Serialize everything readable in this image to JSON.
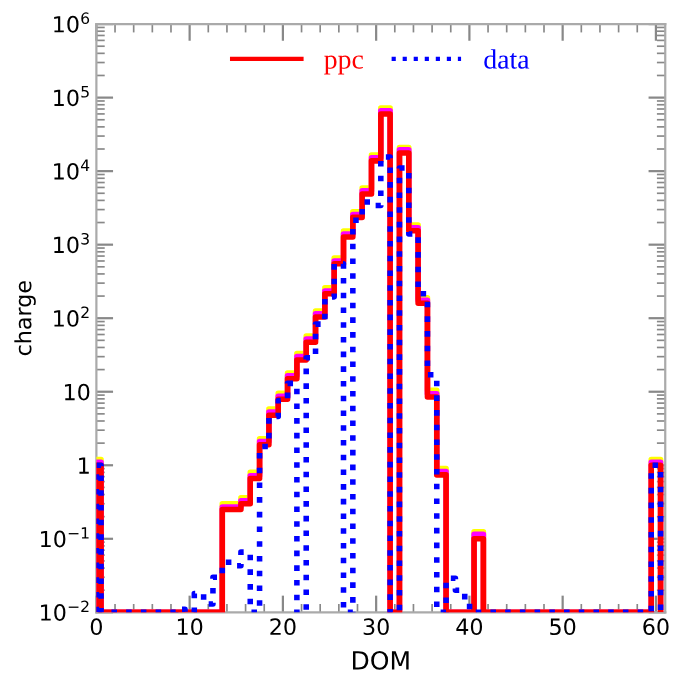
{
  "chart_data": {
    "type": "histogram",
    "xlabel": "DOM",
    "ylabel": "charge",
    "bins": [
      0,
      0.5,
      1.5,
      2.5,
      3.5,
      4.5,
      5.5,
      6.5,
      7.5,
      8.5,
      9.5,
      10.5,
      11.5,
      12.5,
      13.5,
      14.5,
      15.5,
      16.5,
      17.5,
      18.5,
      19.5,
      20.5,
      21.5,
      22.5,
      23.5,
      24.5,
      25.5,
      26.5,
      27.5,
      28.5,
      29.5,
      30.5,
      31.5,
      32.5,
      33.5,
      34.5,
      35.5,
      36.5,
      37.5,
      38.5,
      39.5,
      40.5,
      41.5,
      42.5,
      43.5,
      44.5,
      45.5,
      46.5,
      47.5,
      48.5,
      49.5,
      50.5,
      51.5,
      52.5,
      53.5,
      54.5,
      55.5,
      56.5,
      57.5,
      58.5,
      59.5,
      60.5
    ],
    "series": [
      {
        "color": "#ffff00",
        "line_style": "solid",
        "values": [
          1.2,
          null,
          null,
          null,
          null,
          null,
          null,
          null,
          null,
          null,
          null,
          null,
          null,
          null,
          0.3,
          0.3,
          0.36,
          0.8,
          2.3,
          5.8,
          9.5,
          18,
          33,
          57,
          125,
          260,
          660,
          1530,
          2800,
          5900,
          16500,
          72000,
          null,
          21000,
          1850,
          190,
          10.5,
          0.9,
          null,
          null,
          null,
          0.125,
          null,
          null,
          null,
          null,
          null,
          null,
          null,
          null,
          null,
          null,
          null,
          null,
          null,
          null,
          null,
          null,
          null,
          null,
          1.2
        ]
      },
      {
        "color": "#ff00ff",
        "line_style": "solid",
        "values": [
          1.1,
          null,
          null,
          null,
          null,
          null,
          null,
          null,
          null,
          null,
          null,
          null,
          null,
          null,
          0.27,
          0.27,
          0.33,
          0.72,
          2.1,
          5.3,
          8.7,
          16.5,
          30,
          52,
          115,
          235,
          600,
          1400,
          2580,
          5400,
          15200,
          66000,
          null,
          19500,
          1700,
          175,
          9.4,
          0.82,
          null,
          null,
          null,
          0.115,
          null,
          null,
          null,
          null,
          null,
          null,
          null,
          null,
          null,
          null,
          null,
          null,
          null,
          null,
          null,
          null,
          null,
          null,
          1.1
        ]
      },
      {
        "name": "ppc",
        "color": "#ff0000",
        "line_style": "solid",
        "values": [
          1,
          null,
          null,
          null,
          null,
          null,
          null,
          null,
          null,
          null,
          null,
          null,
          null,
          null,
          0.25,
          0.25,
          0.3,
          0.66,
          1.9,
          4.8,
          7.9,
          15,
          27,
          47,
          104,
          215,
          550,
          1270,
          2350,
          4880,
          13800,
          60000,
          null,
          17700,
          1550,
          160,
          8.5,
          0.74,
          null,
          null,
          null,
          0.1,
          null,
          null,
          null,
          null,
          null,
          null,
          null,
          null,
          null,
          null,
          null,
          null,
          null,
          null,
          null,
          null,
          null,
          null,
          1
        ]
      },
      {
        "name": "data",
        "color": "#0000ff",
        "line_style": "dotted",
        "values": [
          1,
          null,
          null,
          null,
          null,
          null,
          null,
          null,
          null,
          0.011,
          null,
          0.018,
          0.013,
          0.03,
          0.048,
          0.043,
          0.066,
          null,
          1.8,
          4.6,
          7.6,
          13,
          null,
          29,
          83,
          195,
          550,
          null,
          2150,
          3800,
          3400,
          15600,
          null,
          11000,
          1400,
          215,
          17,
          null,
          0.029,
          0.02,
          0.012,
          null,
          null,
          null,
          null,
          null,
          null,
          null,
          null,
          null,
          null,
          null,
          null,
          null,
          null,
          null,
          null,
          null,
          null,
          null,
          1
        ]
      }
    ],
    "log": "y",
    "xlim": [
      0,
      61
    ],
    "xticks": [
      0,
      10,
      20,
      30,
      40,
      50,
      60
    ],
    "ylim": [
      0.01,
      1000000
    ],
    "yticks": [
      {
        "value": 0.01,
        "label": "10$^{−2}$"
      },
      {
        "value": 0.1,
        "label": "10$^{−1}$"
      },
      {
        "value": 1,
        "label": "1"
      },
      {
        "value": 10,
        "label": "10"
      },
      {
        "value": 100,
        "label": "10$^{2}$"
      },
      {
        "value": 1000,
        "label": "10$^{3}$"
      },
      {
        "value": 10000,
        "label": "10$^{4}$"
      },
      {
        "value": 100000,
        "label": "10$^{5}$"
      },
      {
        "value": 1000000,
        "label": "10$^{6}$"
      }
    ],
    "grid": false,
    "legend": "top"
  }
}
